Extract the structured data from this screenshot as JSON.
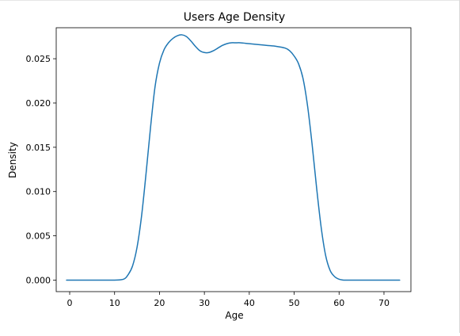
{
  "chart_data": {
    "type": "line",
    "title": "Users Age Density",
    "xlabel": "Age",
    "ylabel": "Density",
    "xlim": [
      -3,
      76
    ],
    "ylim": [
      -0.0013,
      0.0285
    ],
    "xticks": [
      0,
      10,
      20,
      30,
      40,
      50,
      60,
      70
    ],
    "xtick_labels": [
      "0",
      "10",
      "20",
      "30",
      "40",
      "50",
      "60",
      "70"
    ],
    "yticks": [
      0.0,
      0.005,
      0.01,
      0.015,
      0.02,
      0.025
    ],
    "ytick_labels": [
      "0.000",
      "0.005",
      "0.010",
      "0.015",
      "0.020",
      "0.025"
    ],
    "grid": false,
    "series": [
      {
        "color": "#1f77b4",
        "x": [
          -0.7,
          5,
          10,
          12,
          13,
          14,
          15,
          16,
          17,
          18,
          19,
          20,
          21,
          22,
          23,
          24,
          25,
          26,
          27,
          28,
          29,
          30,
          31,
          32,
          33,
          34,
          35,
          36,
          37,
          38,
          40,
          42,
          44,
          46,
          48,
          49,
          50,
          51,
          52,
          53,
          54,
          55,
          56,
          57,
          58,
          59,
          60,
          61,
          62,
          65,
          70,
          73.5
        ],
        "y": [
          0.0,
          0.0,
          0.0,
          0.0001,
          0.0006,
          0.0016,
          0.0037,
          0.0072,
          0.012,
          0.0172,
          0.0218,
          0.0245,
          0.026,
          0.0268,
          0.0273,
          0.0276,
          0.0277,
          0.0275,
          0.027,
          0.0264,
          0.0259,
          0.0257,
          0.0257,
          0.0259,
          0.0262,
          0.0265,
          0.0267,
          0.0268,
          0.0268,
          0.0268,
          0.0267,
          0.0266,
          0.0265,
          0.0264,
          0.0262,
          0.0259,
          0.0253,
          0.0244,
          0.0227,
          0.0196,
          0.0153,
          0.0104,
          0.006,
          0.0028,
          0.0011,
          0.0004,
          0.0001,
          0.0,
          0.0,
          0.0,
          0.0,
          0.0
        ]
      }
    ]
  }
}
